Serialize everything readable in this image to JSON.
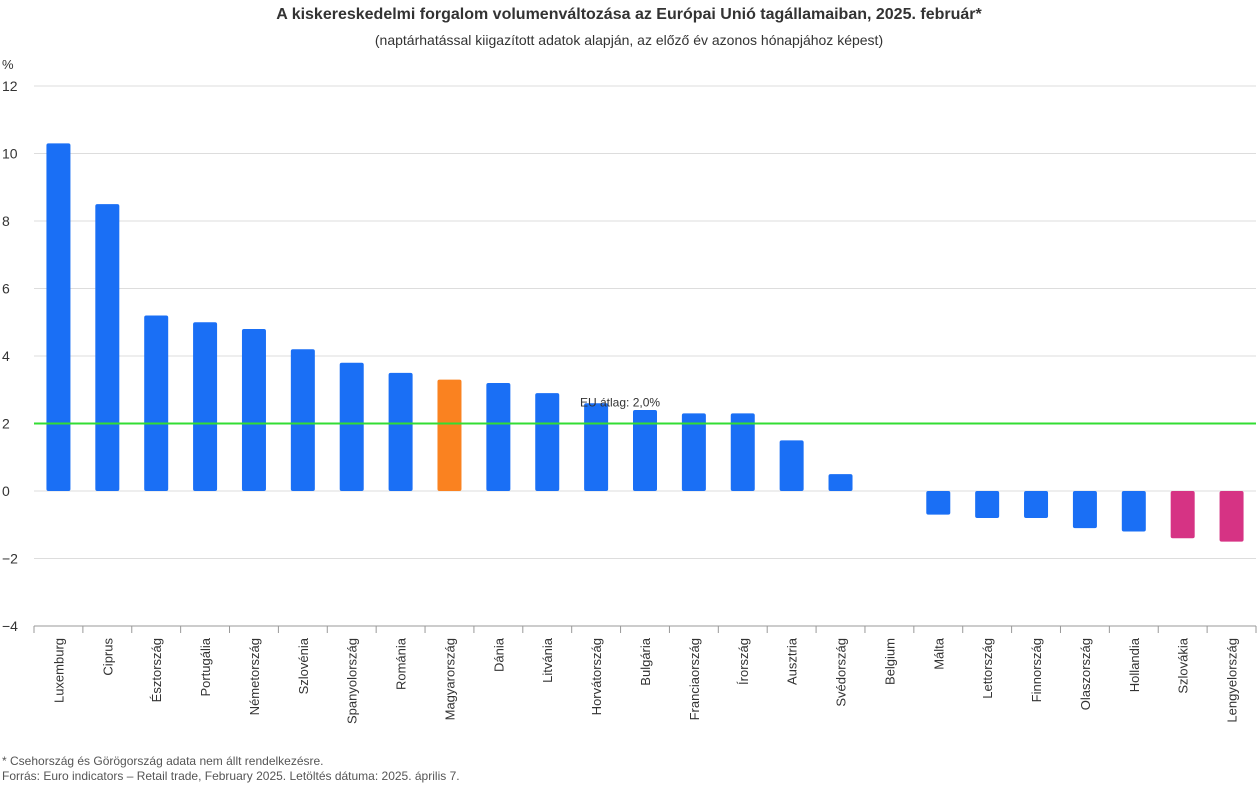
{
  "header": {
    "title": "A kiskereskedelmi forgalom volumenváltozása az Európai Unió tagállamaiban, 2025. február*",
    "subtitle": "(naptárhatással kiigazított adatok alapján, az előző év azonos hónapjához képest)"
  },
  "colors": {
    "default_bar": "#1a6ff5",
    "highlight_bar": "#fa8220",
    "negative_highlight_bar": "#d63384",
    "reference_line": "#33dd33",
    "grid": "#dddddd"
  },
  "chart_data": {
    "type": "bar",
    "title": "A kiskereskedelmi forgalom volumenváltozása az Európai Unió tagállamaiban, 2025. február*",
    "subtitle": "(naptárhatással kiigazított adatok alapján, az előző év azonos hónapjához képest)",
    "ylabel": "%",
    "xlabel": "",
    "ylim": [
      -4,
      12
    ],
    "yticks": [
      -4,
      -2,
      0,
      2,
      4,
      6,
      8,
      10,
      12
    ],
    "ytick_labels": [
      "−4",
      "−2",
      "0",
      "2",
      "4",
      "6",
      "8",
      "10",
      "12"
    ],
    "grid": true,
    "categories": [
      "Luxemburg",
      "Ciprus",
      "Észtország",
      "Portugália",
      "Németország",
      "Szlovénia",
      "Spanyolország",
      "Románia",
      "Magyarország",
      "Dánia",
      "Litvánia",
      "Horvátország",
      "Bulgária",
      "Franciaország",
      "Írország",
      "Ausztria",
      "Svédország",
      "Belgium",
      "Málta",
      "Lettország",
      "Finnország",
      "Olaszország",
      "Hollandia",
      "Szlovákia",
      "Lengyelország"
    ],
    "values": [
      10.3,
      8.5,
      5.2,
      5.0,
      4.8,
      4.2,
      3.8,
      3.5,
      3.3,
      3.2,
      2.9,
      2.6,
      2.4,
      2.3,
      2.3,
      1.5,
      0.5,
      0.0,
      -0.7,
      -0.8,
      -0.8,
      -1.1,
      -1.2,
      -1.4,
      -1.5
    ],
    "bar_colors": [
      "#1a6ff5",
      "#1a6ff5",
      "#1a6ff5",
      "#1a6ff5",
      "#1a6ff5",
      "#1a6ff5",
      "#1a6ff5",
      "#1a6ff5",
      "#fa8220",
      "#1a6ff5",
      "#1a6ff5",
      "#1a6ff5",
      "#1a6ff5",
      "#1a6ff5",
      "#1a6ff5",
      "#1a6ff5",
      "#1a6ff5",
      "#1a6ff5",
      "#1a6ff5",
      "#1a6ff5",
      "#1a6ff5",
      "#1a6ff5",
      "#1a6ff5",
      "#d63384",
      "#d63384"
    ],
    "reference_line": {
      "value": 2.0,
      "label": "EU átlag: 2,0%"
    }
  },
  "footnotes": {
    "note": "* Csehország és Görögország adata nem állt rendelkezésre.",
    "source": "Forrás: Euro indicators – Retail trade, February 2025. Letöltés dátuma: 2025. április 7."
  }
}
